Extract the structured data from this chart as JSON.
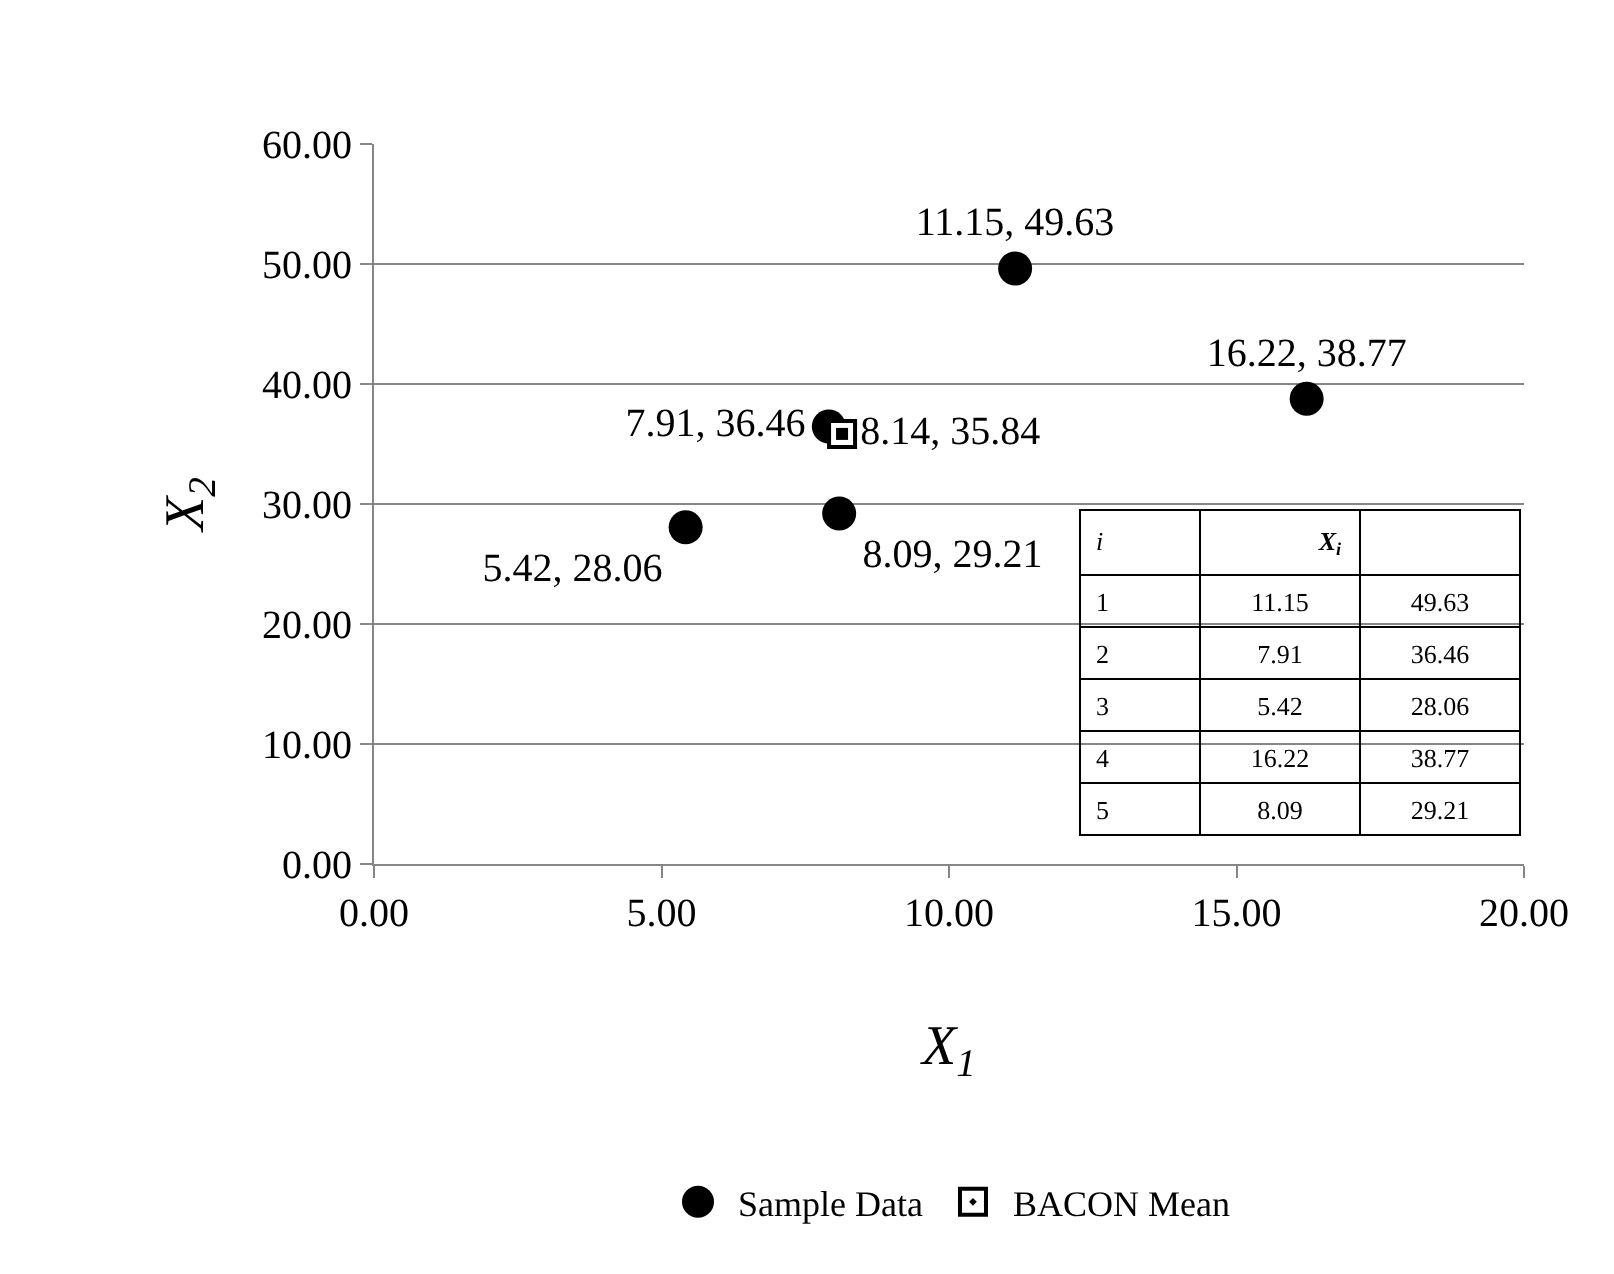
{
  "chart_data": {
    "type": "scatter",
    "xlabel": "X$_{1}$",
    "ylabel": "X$_{2}$",
    "series": [
      {
        "name": "Sample Data",
        "color": "#000000",
        "marker": "circle",
        "x": [
          11.15,
          7.91,
          5.42,
          16.22,
          8.09
        ],
        "values": [
          49.63,
          36.46,
          28.06,
          38.77,
          29.21
        ],
        "value_labels": [
          "11.15, 49.63",
          "7.91, 36.46",
          "5.42, 28.06",
          "16.22, 38.77",
          "8.09, 29.21"
        ]
      },
      {
        "name": "BACON Mean",
        "color": "#000000",
        "marker": "square",
        "x": [
          8.14
        ],
        "values": [
          35.84
        ],
        "value_labels": [
          "8.14, 35.84"
        ]
      }
    ],
    "annotations": [
      "i",
      "X$_{i}$",
      "1",
      "11.15",
      "49.63",
      "2",
      "7.91",
      "36.46",
      "3",
      "5.42",
      "28.06",
      "4",
      "16.22",
      "38.77",
      "5",
      "8.09",
      "29.21"
    ],
    "xlim": [
      0,
      20
    ],
    "ylim": [
      0,
      60
    ],
    "xticks": [
      {
        "value": 0,
        "label": "0.00"
      },
      {
        "value": 5,
        "label": "5.00"
      },
      {
        "value": 10,
        "label": "10.00"
      },
      {
        "value": 15,
        "label": "15.00"
      },
      {
        "value": 20,
        "label": "20.00"
      }
    ],
    "yticks": [
      {
        "value": 0,
        "label": "0.00"
      },
      {
        "value": 10,
        "label": "10.00"
      },
      {
        "value": 20,
        "label": "20.00"
      },
      {
        "value": 30,
        "label": "30.00"
      },
      {
        "value": 40,
        "label": "40.00"
      },
      {
        "value": 50,
        "label": "50.00"
      },
      {
        "value": 60,
        "label": "60.00"
      }
    ],
    "grid": "y",
    "legend": "bottom"
  }
}
